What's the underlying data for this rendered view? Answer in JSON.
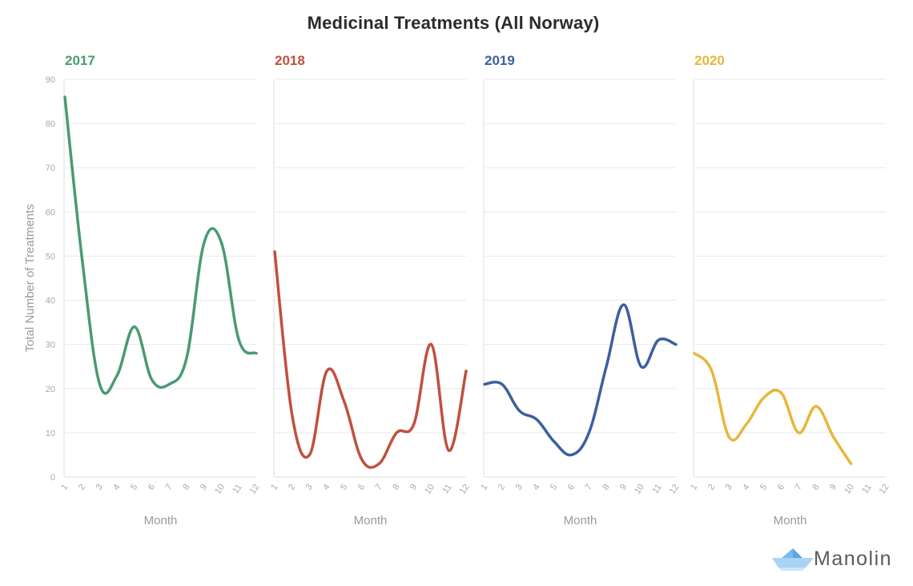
{
  "title": "Medicinal Treatments (All Norway)",
  "brand": {
    "name": "Manolin",
    "logo_icon": "paper-boat-icon",
    "logo_color": "#8fc3ee"
  },
  "chart_data": {
    "type": "line",
    "layout": "small-multiples",
    "ylabel": "Total Number of Treatments",
    "xlabel": "Month",
    "ylim": [
      0,
      90
    ],
    "yticks": [
      0,
      10,
      20,
      30,
      40,
      50,
      60,
      70,
      80,
      90
    ],
    "xlim": [
      1,
      12
    ],
    "categories": [
      "1",
      "2",
      "3",
      "4",
      "5",
      "6",
      "7",
      "8",
      "9",
      "10",
      "11",
      "12"
    ],
    "grid": true,
    "series": [
      {
        "name": "2017",
        "color": "#4a9a72",
        "x": [
          1,
          2,
          3,
          4,
          5,
          6,
          7,
          8,
          9,
          10,
          11,
          12
        ],
        "values": [
          86,
          49,
          21,
          23,
          34,
          22,
          21,
          27,
          53,
          53,
          31,
          28
        ]
      },
      {
        "name": "2018",
        "color": "#c0503e",
        "x": [
          1,
          2,
          3,
          4,
          5,
          6,
          7,
          8,
          9,
          10,
          11,
          12
        ],
        "values": [
          51,
          14,
          5,
          24,
          17,
          4,
          3,
          10,
          12,
          30,
          6,
          24
        ]
      },
      {
        "name": "2019",
        "color": "#3c5f9e",
        "x": [
          1,
          2,
          3,
          4,
          5,
          6,
          7,
          8,
          9,
          10,
          11,
          12
        ],
        "values": [
          21,
          21,
          15,
          13,
          8,
          5,
          10,
          25,
          39,
          25,
          31,
          30
        ]
      },
      {
        "name": "2020",
        "color": "#e7b73a",
        "x": [
          1,
          2,
          3,
          4,
          5,
          6,
          7,
          8,
          9,
          10
        ],
        "values": [
          28,
          24,
          9,
          12,
          18,
          19,
          10,
          16,
          9,
          3
        ]
      }
    ]
  }
}
